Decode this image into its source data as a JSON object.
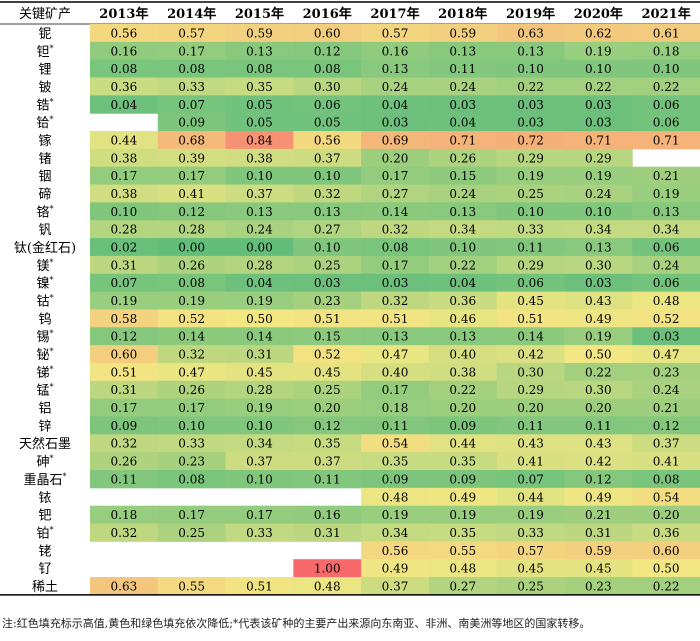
{
  "chart_data": {
    "type": "heatmap",
    "corner_label": "关键矿产",
    "columns": [
      "2013年",
      "2014年",
      "2015年",
      "2016年",
      "2017年",
      "2018年",
      "2019年",
      "2020年",
      "2021年"
    ],
    "rows": [
      {
        "label": "铌",
        "starred": false,
        "values": [
          0.56,
          0.57,
          0.59,
          0.6,
          0.57,
          0.59,
          0.63,
          0.62,
          0.61
        ]
      },
      {
        "label": "钽",
        "starred": true,
        "values": [
          0.16,
          0.17,
          0.13,
          0.12,
          0.16,
          0.13,
          0.13,
          0.19,
          0.18
        ]
      },
      {
        "label": "锂",
        "starred": false,
        "values": [
          0.08,
          0.08,
          0.08,
          0.08,
          0.13,
          0.11,
          0.1,
          0.1,
          0.1
        ]
      },
      {
        "label": "铍",
        "starred": false,
        "values": [
          0.36,
          0.33,
          0.35,
          0.3,
          0.24,
          0.24,
          0.22,
          0.22,
          0.22
        ]
      },
      {
        "label": "锆",
        "starred": true,
        "values": [
          0.04,
          0.07,
          0.05,
          0.06,
          0.04,
          0.03,
          0.03,
          0.03,
          0.06
        ]
      },
      {
        "label": "铪",
        "starred": true,
        "values": [
          null,
          0.09,
          0.05,
          0.05,
          0.03,
          0.04,
          0.03,
          0.03,
          0.06
        ]
      },
      {
        "label": "镓",
        "starred": false,
        "values": [
          0.44,
          0.68,
          0.84,
          0.56,
          0.69,
          0.71,
          0.72,
          0.71,
          0.71
        ]
      },
      {
        "label": "锗",
        "starred": false,
        "values": [
          0.38,
          0.39,
          0.38,
          0.37,
          0.2,
          0.26,
          0.29,
          0.29,
          null
        ]
      },
      {
        "label": "铟",
        "starred": false,
        "values": [
          0.17,
          0.17,
          0.1,
          0.1,
          0.17,
          0.15,
          0.19,
          0.19,
          0.21
        ]
      },
      {
        "label": "碲",
        "starred": false,
        "values": [
          0.38,
          0.41,
          0.37,
          0.32,
          0.27,
          0.24,
          0.25,
          0.24,
          0.19
        ]
      },
      {
        "label": "铬",
        "starred": true,
        "values": [
          0.1,
          0.12,
          0.13,
          0.13,
          0.14,
          0.13,
          0.1,
          0.1,
          0.13
        ]
      },
      {
        "label": "钒",
        "starred": false,
        "values": [
          0.28,
          0.28,
          0.24,
          0.27,
          0.32,
          0.34,
          0.33,
          0.34,
          0.34
        ]
      },
      {
        "label": "钛(金红石)",
        "starred": false,
        "values": [
          0.02,
          0.0,
          0.0,
          0.1,
          0.08,
          0.1,
          0.11,
          0.13,
          0.06
        ]
      },
      {
        "label": "镁",
        "starred": true,
        "values": [
          0.31,
          0.26,
          0.28,
          0.25,
          0.17,
          0.22,
          0.29,
          0.3,
          0.24
        ]
      },
      {
        "label": "镍",
        "starred": true,
        "values": [
          0.07,
          0.08,
          0.04,
          0.03,
          0.03,
          0.04,
          0.06,
          0.03,
          0.06
        ]
      },
      {
        "label": "钴",
        "starred": true,
        "values": [
          0.19,
          0.19,
          0.19,
          0.23,
          0.32,
          0.36,
          0.45,
          0.43,
          0.48
        ]
      },
      {
        "label": "钨",
        "starred": false,
        "values": [
          0.58,
          0.52,
          0.5,
          0.51,
          0.51,
          0.46,
          0.51,
          0.49,
          0.52
        ]
      },
      {
        "label": "锡",
        "starred": true,
        "values": [
          0.12,
          0.14,
          0.14,
          0.15,
          0.13,
          0.13,
          0.14,
          0.19,
          0.03
        ]
      },
      {
        "label": "铋",
        "starred": true,
        "values": [
          0.6,
          0.32,
          0.31,
          0.52,
          0.47,
          0.4,
          0.42,
          0.5,
          0.47
        ]
      },
      {
        "label": "锑",
        "starred": true,
        "values": [
          0.51,
          0.47,
          0.45,
          0.45,
          0.4,
          0.38,
          0.3,
          0.22,
          0.23
        ]
      },
      {
        "label": "锰",
        "starred": true,
        "values": [
          0.31,
          0.26,
          0.28,
          0.25,
          0.17,
          0.22,
          0.29,
          0.3,
          0.24
        ]
      },
      {
        "label": "铝",
        "starred": false,
        "values": [
          0.17,
          0.17,
          0.19,
          0.2,
          0.18,
          0.2,
          0.2,
          0.2,
          0.21
        ]
      },
      {
        "label": "锌",
        "starred": false,
        "values": [
          0.09,
          0.1,
          0.1,
          0.12,
          0.11,
          0.09,
          0.11,
          0.11,
          0.12
        ]
      },
      {
        "label": "天然石墨",
        "starred": false,
        "values": [
          0.32,
          0.33,
          0.34,
          0.35,
          0.54,
          0.44,
          0.43,
          0.43,
          0.37
        ]
      },
      {
        "label": "砷",
        "starred": true,
        "values": [
          0.26,
          0.23,
          0.37,
          0.37,
          0.35,
          0.35,
          0.41,
          0.42,
          0.41
        ]
      },
      {
        "label": "重晶石",
        "starred": true,
        "values": [
          0.11,
          0.08,
          0.1,
          0.11,
          0.09,
          0.09,
          0.07,
          0.12,
          0.08
        ]
      },
      {
        "label": "铱",
        "starred": false,
        "values": [
          null,
          null,
          null,
          null,
          0.48,
          0.49,
          0.44,
          0.49,
          0.54
        ]
      },
      {
        "label": "钯",
        "starred": false,
        "values": [
          0.18,
          0.17,
          0.17,
          0.16,
          0.19,
          0.19,
          0.19,
          0.21,
          0.2
        ]
      },
      {
        "label": "铂",
        "starred": true,
        "values": [
          0.32,
          0.25,
          0.33,
          0.31,
          0.34,
          0.35,
          0.33,
          0.31,
          0.36
        ]
      },
      {
        "label": "铑",
        "starred": false,
        "values": [
          null,
          null,
          null,
          null,
          0.56,
          0.55,
          0.57,
          0.59,
          0.6
        ]
      },
      {
        "label": "钌",
        "starred": false,
        "values": [
          null,
          null,
          null,
          1.0,
          0.49,
          0.48,
          0.45,
          0.45,
          0.5
        ]
      },
      {
        "label": "稀土",
        "starred": false,
        "values": [
          0.63,
          0.55,
          0.51,
          0.48,
          0.37,
          0.27,
          0.25,
          0.23,
          0.22
        ]
      }
    ],
    "star_symbol": "*",
    "color_scale": {
      "stops": [
        {
          "value": 0.0,
          "color": "#63be7b"
        },
        {
          "value": 0.5,
          "color": "#f2e783"
        },
        {
          "value": 1.0,
          "color": "#f8696b"
        }
      ],
      "range": [
        0.0,
        1.0
      ]
    },
    "note": "注:红色填充标示高值,黄色和绿色填充依次降低;*代表该矿种的主要产出来源向东南亚、非洲、南美洲等地区的国家转移。"
  }
}
